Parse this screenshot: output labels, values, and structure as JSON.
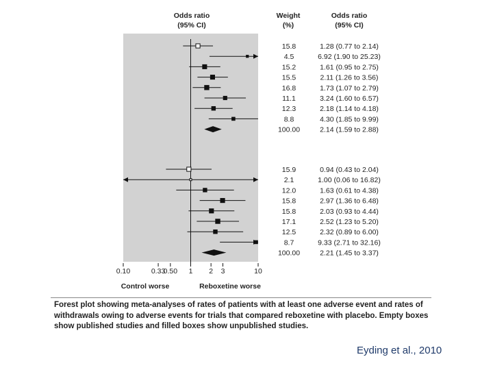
{
  "chart_data": {
    "type": "forest",
    "headers": {
      "or_left": [
        "Odds ratio",
        "(95% CI)"
      ],
      "weight": [
        "Weight",
        "(%)"
      ],
      "or_right": [
        "Odds ratio",
        "(95% CI)"
      ]
    },
    "x_scale": "log",
    "xlim": [
      0.1,
      10
    ],
    "null_line": 1,
    "ticks": [
      "0.10",
      "0.33",
      "0.50",
      "1",
      "2",
      "3",
      "10"
    ],
    "tick_values": [
      0.1,
      0.33,
      0.5,
      1,
      2,
      3,
      10
    ],
    "xlabel_left": "Control worse",
    "xlabel_right": "Reboxetine worse",
    "groups": [
      {
        "studies": [
          {
            "weight": "15.8",
            "ci_text": "1.28 (0.77 to 2.14)",
            "or": 1.28,
            "lo": 0.77,
            "hi": 2.14,
            "published": true
          },
          {
            "weight": "4.5",
            "ci_text": "6.92 (1.90 to 25.23)",
            "or": 6.92,
            "lo": 1.9,
            "hi": 25.23,
            "published": false
          },
          {
            "weight": "15.2",
            "ci_text": "1.61 (0.95 to 2.75)",
            "or": 1.61,
            "lo": 0.95,
            "hi": 2.75,
            "published": false
          },
          {
            "weight": "15.5",
            "ci_text": "2.11 (1.26 to 3.56)",
            "or": 2.11,
            "lo": 1.26,
            "hi": 3.56,
            "published": false
          },
          {
            "weight": "16.8",
            "ci_text": "1.73 (1.07 to 2.79)",
            "or": 1.73,
            "lo": 1.07,
            "hi": 2.79,
            "published": false
          },
          {
            "weight": "11.1",
            "ci_text": "3.24 (1.60 to 6.57)",
            "or": 3.24,
            "lo": 1.6,
            "hi": 6.57,
            "published": false
          },
          {
            "weight": "12.3",
            "ci_text": "2.18 (1.14 to 4.18)",
            "or": 2.18,
            "lo": 1.14,
            "hi": 4.18,
            "published": false
          },
          {
            "weight": "8.8",
            "ci_text": "4.30 (1.85 to 9.99)",
            "or": 4.3,
            "lo": 1.85,
            "hi": 9.99,
            "published": false
          }
        ],
        "total": {
          "weight": "100.00",
          "ci_text": "2.14 (1.59 to 2.88)",
          "or": 2.14,
          "lo": 1.59,
          "hi": 2.88
        }
      },
      {
        "studies": [
          {
            "weight": "15.9",
            "ci_text": "0.94 (0.43 to 2.04)",
            "or": 0.94,
            "lo": 0.43,
            "hi": 2.04,
            "published": true
          },
          {
            "weight": "2.1",
            "ci_text": "1.00 (0.06 to 16.82)",
            "or": 1.0,
            "lo": 0.06,
            "hi": 16.82,
            "published": true
          },
          {
            "weight": "12.0",
            "ci_text": "1.63 (0.61 to 4.38)",
            "or": 1.63,
            "lo": 0.61,
            "hi": 4.38,
            "published": false
          },
          {
            "weight": "15.8",
            "ci_text": "2.97 (1.36 to 6.48)",
            "or": 2.97,
            "lo": 1.36,
            "hi": 6.48,
            "published": false
          },
          {
            "weight": "15.8",
            "ci_text": "2.03 (0.93 to 4.44)",
            "or": 2.03,
            "lo": 0.93,
            "hi": 4.44,
            "published": false
          },
          {
            "weight": "17.1",
            "ci_text": "2.52 (1.23 to 5.20)",
            "or": 2.52,
            "lo": 1.23,
            "hi": 5.2,
            "published": false
          },
          {
            "weight": "12.5",
            "ci_text": "2.32 (0.89 to 6.00)",
            "or": 2.32,
            "lo": 0.89,
            "hi": 6.0,
            "published": false
          },
          {
            "weight": "8.7",
            "ci_text": "9.33 (2.71 to 32.16)",
            "or": 9.33,
            "lo": 2.71,
            "hi": 32.16,
            "published": false
          }
        ],
        "total": {
          "weight": "100.00",
          "ci_text": "2.21 (1.45 to 3.37)",
          "or": 2.21,
          "lo": 1.45,
          "hi": 3.37
        }
      }
    ]
  },
  "caption": "Forest plot showing meta-analyses of rates of patients with at least one adverse event and rates of withdrawals owing to adverse events for trials that compared reboxetine with placebo. Empty boxes show published studies and filled boxes show unpublished studies.",
  "credit": "Eyding et al., 2010",
  "colors": {
    "panel": "#d2d2d2",
    "ink": "#111111",
    "credit": "#1f3a6a"
  }
}
